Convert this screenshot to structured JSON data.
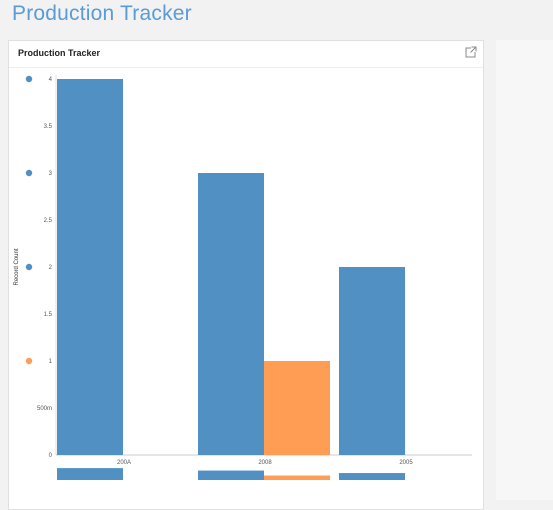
{
  "page": {
    "title": "Production Tracker"
  },
  "card": {
    "title": "Production Tracker",
    "expand_icon": "open-in-new-icon"
  },
  "chart_data": {
    "type": "bar",
    "title": "",
    "xlabel": "",
    "ylabel": "Record Count",
    "categories": [
      "200A",
      "2008",
      "2005"
    ],
    "ylim": [
      0,
      4
    ],
    "yticks": [
      "0",
      "500m",
      "1",
      "1.5",
      "2",
      "2.5",
      "3",
      "3.5",
      "4"
    ],
    "series": [
      {
        "values": [
          4,
          3,
          2
        ],
        "color": "#5190c2"
      },
      {
        "values": [
          0,
          1,
          0
        ],
        "color": "#ff9d55"
      }
    ],
    "legend_markers": [
      {
        "value": 4,
        "color": "#5190c2"
      },
      {
        "value": 3,
        "color": "#5190c2"
      },
      {
        "value": 2,
        "color": "#5190c2"
      },
      {
        "value": 1,
        "color": "#ff9d55"
      }
    ]
  }
}
